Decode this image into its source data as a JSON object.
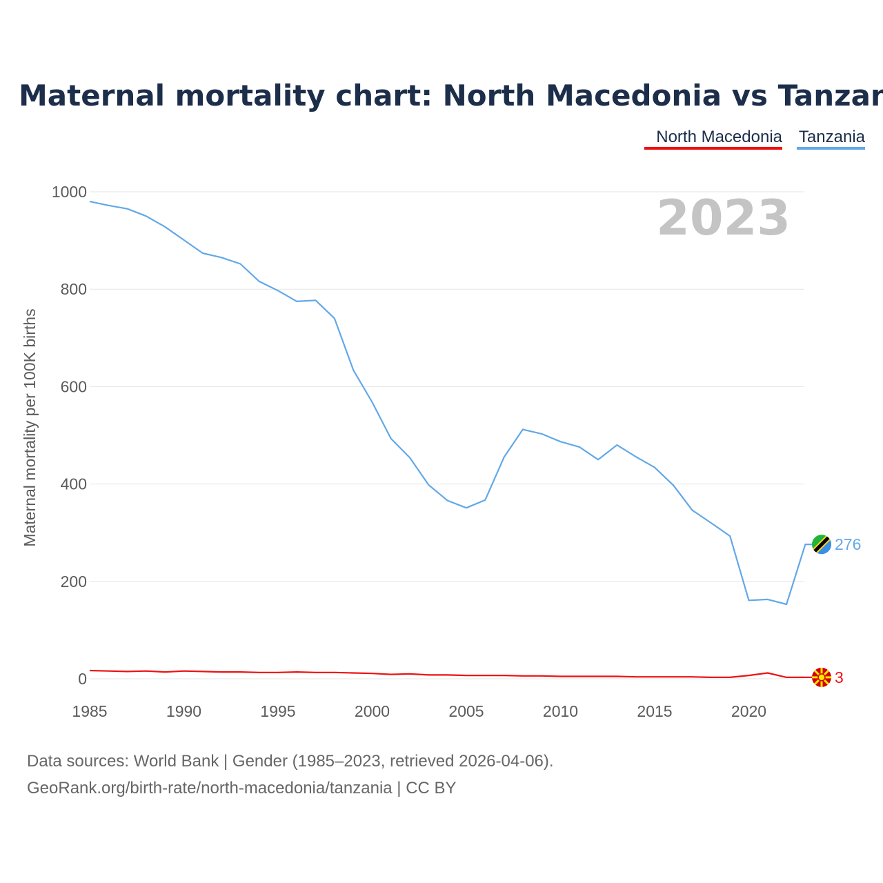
{
  "chart_data": {
    "type": "line",
    "title": "Maternal mortality chart: North Macedonia vs Tanzania",
    "ylabel": "Maternal mortality per 100K births",
    "xlabel": "",
    "ylim": [
      0,
      1000
    ],
    "xlim": [
      1985,
      2023
    ],
    "y_ticks": [
      "0",
      "200",
      "400",
      "600",
      "800",
      "1000"
    ],
    "x_ticks": [
      "1985",
      "1990",
      "1995",
      "2000",
      "2005",
      "2010",
      "2015",
      "2020"
    ],
    "current_year": "2023",
    "legend": [
      "North Macedonia",
      "Tanzania"
    ],
    "legend_position": "top-right",
    "x": [
      1985,
      1986,
      1987,
      1988,
      1989,
      1990,
      1991,
      1992,
      1993,
      1994,
      1995,
      1996,
      1997,
      1998,
      1999,
      2000,
      2001,
      2002,
      2003,
      2004,
      2005,
      2006,
      2007,
      2008,
      2009,
      2010,
      2011,
      2012,
      2013,
      2014,
      2015,
      2016,
      2017,
      2018,
      2019,
      2020,
      2021,
      2022,
      2023
    ],
    "series": [
      {
        "name": "North Macedonia",
        "color": "#ee1111",
        "end_label": "3",
        "flag": "north-macedonia-flag-icon",
        "values": [
          17,
          16,
          15,
          16,
          14,
          16,
          15,
          14,
          14,
          13,
          13,
          14,
          13,
          13,
          12,
          11,
          9,
          10,
          8,
          8,
          7,
          7,
          7,
          6,
          6,
          5,
          5,
          5,
          5,
          4,
          4,
          4,
          4,
          3,
          3,
          7,
          12,
          3,
          3
        ]
      },
      {
        "name": "Tanzania",
        "color": "#62a8e8",
        "end_label": "276",
        "flag": "tanzania-flag-icon",
        "values": [
          980,
          972,
          965,
          950,
          928,
          901,
          874,
          865,
          852,
          816,
          797,
          775,
          777,
          740,
          634,
          568,
          493,
          454,
          398,
          366,
          351,
          367,
          455,
          512,
          503,
          487,
          476,
          450,
          480,
          456,
          434,
          397,
          346,
          320,
          293,
          161,
          163,
          153,
          276
        ]
      }
    ]
  },
  "footer": {
    "source": "Data sources: World Bank | Gender (1985–2023, retrieved 2026-04-06).",
    "credit": "GeoRank.org/birth-rate/north-macedonia/tanzania | CC BY"
  }
}
